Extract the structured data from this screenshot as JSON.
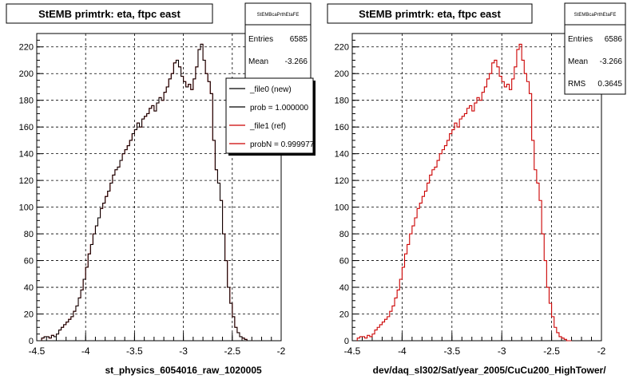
{
  "footer_text": "",
  "colors": {
    "new": "#000000",
    "ref": "#cc0000",
    "grid": "#000000",
    "frame": "#000000"
  },
  "chart_data": [
    {
      "type": "line",
      "title": "StEMB primtrk: eta, ftpc east",
      "xlabel": "st_physics_6054016_raw_1020005",
      "xlim": [
        -4.5,
        -2
      ],
      "ylim": [
        0,
        230
      ],
      "xticks": [
        -4.5,
        -4,
        -3.5,
        -3,
        -2.5,
        -2
      ],
      "xtick_labels": [
        "-4.5",
        "-4",
        "-3.5",
        "-3",
        "-2.5",
        "-2"
      ],
      "yticks": [
        0,
        20,
        40,
        60,
        80,
        100,
        120,
        140,
        160,
        180,
        200,
        220
      ],
      "grid": true,
      "stats": {
        "name": "StEMBcaPrthEtaFE",
        "rows": [
          {
            "label": "Entries",
            "value": "6585"
          },
          {
            "label": "Mean",
            "value": "-3.266"
          }
        ]
      },
      "legend": {
        "placement": "top-right",
        "entries": [
          {
            "label": "_file0 (new)",
            "color": "#000000"
          },
          {
            "label": "prob = 1.000000",
            "color": "#000000"
          },
          {
            "label": "_file1 (ref)",
            "color": "#cc0000"
          },
          {
            "label": "probN = 0.999977",
            "color": "#cc0000"
          }
        ]
      },
      "bin_width": 0.025,
      "bin_start": -4.45,
      "series": [
        {
          "style": "black-step",
          "values": [
            2,
            3,
            3,
            2,
            4,
            3,
            5,
            8,
            10,
            12,
            14,
            16,
            18,
            22,
            26,
            32,
            38,
            46,
            55,
            65,
            72,
            80,
            86,
            92,
            99,
            103,
            108,
            112,
            118,
            124,
            128,
            130,
            135,
            140,
            143,
            146,
            150,
            155,
            158,
            163,
            160,
            166,
            168,
            170,
            174,
            176,
            172,
            178,
            182,
            180,
            186,
            190,
            196,
            200,
            208,
            210,
            205,
            198,
            194,
            190,
            192,
            188,
            196,
            205,
            218,
            222,
            210,
            200,
            194,
            185,
            150,
            128,
            118,
            105,
            80,
            60,
            40,
            28,
            18,
            10,
            6,
            3,
            2,
            1,
            0,
            0
          ]
        },
        {
          "style": "red-step",
          "values": [
            2,
            3,
            3,
            2,
            4,
            3,
            5,
            8,
            10,
            12,
            14,
            16,
            18,
            22,
            26,
            32,
            38,
            46,
            55,
            65,
            72,
            80,
            86,
            92,
            99,
            103,
            108,
            112,
            118,
            124,
            128,
            130,
            135,
            140,
            143,
            146,
            150,
            155,
            158,
            163,
            160,
            166,
            168,
            170,
            174,
            176,
            172,
            178,
            182,
            180,
            186,
            190,
            196,
            200,
            208,
            210,
            205,
            198,
            194,
            190,
            192,
            188,
            196,
            205,
            218,
            222,
            210,
            200,
            194,
            185,
            150,
            128,
            118,
            105,
            80,
            60,
            40,
            28,
            18,
            10,
            6,
            3,
            2,
            1,
            0,
            0
          ]
        }
      ]
    },
    {
      "type": "line",
      "title": "StEMB primtrk: eta, ftpc east",
      "xlabel": "dev/daq_sl302/Sat/year_2005/CuCu200_HighTower/",
      "xlim": [
        -4.5,
        -2
      ],
      "ylim": [
        0,
        230
      ],
      "xticks": [
        -4.5,
        -4,
        -3.5,
        -3,
        -2.5,
        -2
      ],
      "xtick_labels": [
        "-4.5",
        "-4",
        "-3.5",
        "-3",
        "-2.5",
        "-2"
      ],
      "yticks": [
        0,
        20,
        40,
        60,
        80,
        100,
        120,
        140,
        160,
        180,
        200,
        220
      ],
      "grid": true,
      "stats": {
        "name": "StEMBcaPrthEtaFE",
        "rows": [
          {
            "label": "Entries",
            "value": "6586"
          },
          {
            "label": "Mean",
            "value": "-3.266"
          },
          {
            "label": "RMS",
            "value": "0.3645"
          }
        ]
      },
      "bin_width": 0.025,
      "bin_start": -4.45,
      "series": [
        {
          "style": "red-step",
          "values": [
            2,
            3,
            3,
            2,
            4,
            3,
            5,
            8,
            10,
            12,
            14,
            16,
            18,
            22,
            26,
            32,
            38,
            46,
            55,
            65,
            72,
            80,
            86,
            92,
            99,
            103,
            108,
            112,
            118,
            124,
            128,
            130,
            135,
            140,
            143,
            146,
            150,
            155,
            158,
            163,
            160,
            166,
            168,
            170,
            174,
            176,
            172,
            178,
            182,
            180,
            186,
            190,
            196,
            200,
            208,
            210,
            205,
            198,
            194,
            190,
            192,
            188,
            196,
            205,
            218,
            222,
            210,
            200,
            194,
            185,
            150,
            128,
            118,
            105,
            80,
            60,
            40,
            28,
            18,
            10,
            6,
            3,
            2,
            1,
            0,
            0
          ]
        }
      ]
    }
  ]
}
